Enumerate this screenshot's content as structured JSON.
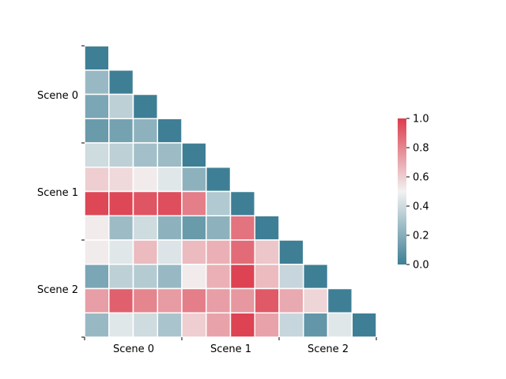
{
  "chart_data": {
    "type": "heatmap",
    "title": "",
    "xlabel": "",
    "ylabel": "",
    "group_labels": [
      "Scene 0",
      "Scene 1",
      "Scene 2"
    ],
    "rows": 12,
    "cols": 12,
    "mask": "upper-triangle",
    "matrix": [
      [
        0.0
      ],
      [
        0.25,
        0.0
      ],
      [
        0.17,
        0.35,
        0.0
      ],
      [
        0.12,
        0.15,
        0.22,
        0.0
      ],
      [
        0.4,
        0.35,
        0.28,
        0.26,
        0.0
      ],
      [
        0.6,
        0.57,
        0.52,
        0.45,
        0.22,
        0.0
      ],
      [
        0.97,
        0.97,
        0.93,
        0.95,
        0.82,
        0.32,
        0.0
      ],
      [
        0.52,
        0.26,
        0.4,
        0.22,
        0.12,
        0.22,
        0.85,
        0.0
      ],
      [
        0.52,
        0.45,
        0.65,
        0.44,
        0.65,
        0.68,
        0.87,
        0.62,
        0.0
      ],
      [
        0.17,
        0.35,
        0.33,
        0.25,
        0.52,
        0.68,
        0.98,
        0.65,
        0.38,
        0.0
      ],
      [
        0.73,
        0.9,
        0.8,
        0.74,
        0.82,
        0.73,
        0.75,
        0.92,
        0.7,
        0.58,
        0.0
      ],
      [
        0.25,
        0.45,
        0.4,
        0.3,
        0.6,
        0.72,
        0.98,
        0.72,
        0.38,
        0.1,
        0.45,
        0.0
      ]
    ],
    "colorbar": {
      "range": [
        0.0,
        1.0
      ],
      "ticks": [
        "0.0",
        "0.2",
        "0.4",
        "0.6",
        "0.8",
        "1.0"
      ],
      "low_color": "#3e7f95",
      "mid_color": "#f2f2f2",
      "high_color": "#dc3c4c"
    },
    "grid": false,
    "legend": "colorbar-right"
  }
}
